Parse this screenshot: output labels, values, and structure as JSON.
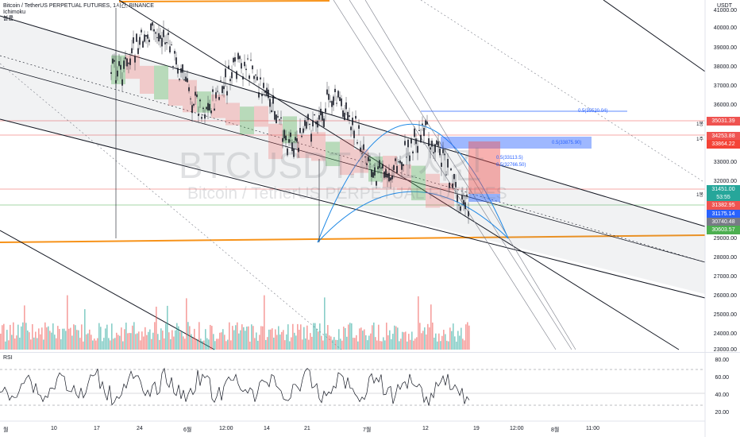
{
  "legend": {
    "symbol_line": "Bitcoin / TetherUS PERPETUAL FUTURES, 1시간, BINANCE",
    "indicator": "Ichimoku",
    "indicator2": "볼륨"
  },
  "watermark": {
    "symbol": "BTCUSDT.P, 1시간",
    "description": "Bitcoin / TetherUS PERPETUAL FUTURES"
  },
  "price_axis": {
    "currency": "USDT",
    "ticks": [
      "41000.00",
      "40000.00",
      "39000.00",
      "38000.00",
      "37000.00",
      "36000.00",
      "35000.00",
      "34000.00",
      "33000.00",
      "32000.00",
      "31000.00",
      "30000.00",
      "29000.00",
      "28000.00",
      "27000.00",
      "26000.00",
      "25000.00",
      "24000.00",
      "23000.00"
    ],
    "tag_35031": "35031.39",
    "tag_34253": "34253.88",
    "tag_33864": "33864.22",
    "tag_31451": "31451.00",
    "tag_countdown": "53:55",
    "tag_31382": "31382.95",
    "tag_31175": "31175.14",
    "tag_30740": "30740.48",
    "tag_30603": "30603.57",
    "line_label_1": "1봉",
    "line_label_2": "1주",
    "line_label_3": "1봉"
  },
  "fib_labels": {
    "a": "0.5(35520.04)",
    "b": "0.5(33875.90)",
    "c": "0.5(33113.5)",
    "d": "0.5(32766.50)"
  },
  "time_axis": [
    "월",
    "10",
    "17",
    "24",
    "6월",
    "12:00",
    "14",
    "21",
    "7월",
    "12",
    "19",
    "12:00",
    "8월",
    "11:00"
  ],
  "rsi": {
    "label": "RSI",
    "ticks": [
      "80.00",
      "60.00",
      "40.00",
      "20.00"
    ]
  },
  "colors": {
    "up": "#26a69a",
    "down": "#ef5350",
    "orange_line": "#f7931a",
    "fib_blue": "#2962ff",
    "arc_blue": "#1e88e5",
    "cloud_green": "#4caf50",
    "cloud_red": "#ef5350"
  }
}
